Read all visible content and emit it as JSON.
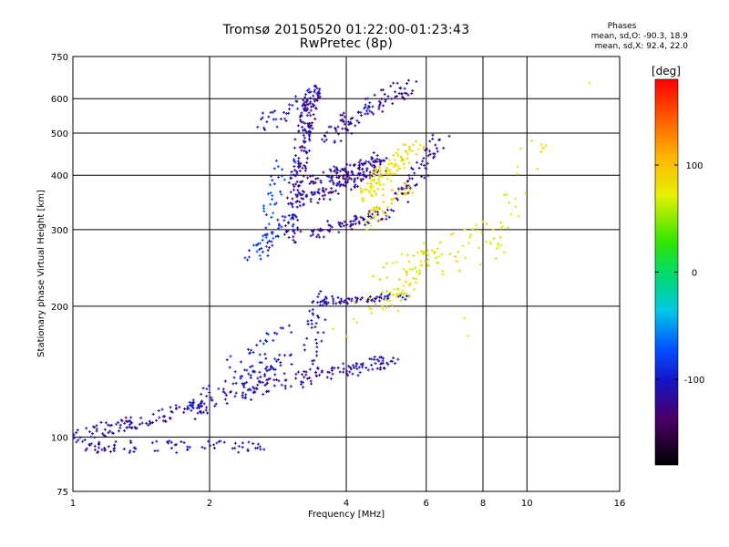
{
  "header": {
    "title": "Tromsø 20150520 01:22:00-01:23:43",
    "subtitle": "RwPretec (8p)"
  },
  "phase_stats": {
    "title": "Phases",
    "line_o": "mean, sd,O: -90.3, 18.9",
    "line_x": "mean, sd,X:  92.4, 22.0"
  },
  "colorbar": {
    "label": "[deg]",
    "range": [
      -180,
      180
    ],
    "ticks": [
      {
        "value": 100,
        "label": "100"
      },
      {
        "value": 0,
        "label": "0"
      },
      {
        "value": -100,
        "label": "-100"
      }
    ]
  },
  "chart_data": {
    "type": "scatter",
    "title": "Tromsø 20150520 01:22:00-01:23:43",
    "subtitle": "RwPretec (8p)",
    "xlabel": "Frequency [MHz]",
    "ylabel": "Stationary phase Virtual Height [km]",
    "xscale": "log",
    "yscale": "log",
    "xlim": [
      1,
      16
    ],
    "ylim": [
      75,
      750
    ],
    "xticks": [
      1,
      2,
      4,
      6,
      8,
      10,
      16
    ],
    "xtick_labels": [
      "1",
      "2",
      "4",
      "6",
      "8",
      "10",
      "16"
    ],
    "yticks": [
      75,
      100,
      200,
      300,
      400,
      500,
      600,
      750
    ],
    "ytick_labels": [
      "75",
      "100",
      "200",
      "300",
      "400",
      "500",
      "600",
      "750"
    ],
    "grid": true,
    "color_quantity": "phase [deg]",
    "traces": [
      {
        "x_range": [
          1.0,
          2.6
        ],
        "y_start": 95,
        "y_end": 95,
        "x_jitter": 0.04,
        "y_jitter": 3,
        "n": 80,
        "phase": -110
      },
      {
        "x_range": [
          1.0,
          2.0
        ],
        "y_start": 100,
        "y_end": 118,
        "x_jitter": 0.05,
        "y_jitter": 4,
        "n": 110,
        "phase": -112
      },
      {
        "x_range": [
          1.8,
          3.0
        ],
        "y_start": 115,
        "y_end": 150,
        "x_jitter": 0.05,
        "y_jitter": 7,
        "n": 90,
        "phase": -108
      },
      {
        "x_range": [
          2.3,
          5.0
        ],
        "y_start": 125,
        "y_end": 150,
        "x_jitter": 0.05,
        "y_jitter": 5,
        "n": 130,
        "phase": -115
      },
      {
        "x_range": [
          2.2,
          2.9
        ],
        "y_start": 140,
        "y_end": 175,
        "x_jitter": 0.06,
        "y_jitter": 8,
        "n": 30,
        "phase": -100
      },
      {
        "x_range": [
          3.3,
          3.6
        ],
        "y_start": 140,
        "y_end": 220,
        "x_jitter": 0.05,
        "y_jitter": 6,
        "n": 40,
        "phase": -112
      },
      {
        "x_range": [
          3.5,
          5.5
        ],
        "y_start": 205,
        "y_end": 210,
        "x_jitter": 0.05,
        "y_jitter": 4,
        "n": 70,
        "phase": -112
      },
      {
        "x_range": [
          5.0,
          6.2
        ],
        "y_start": 200,
        "y_end": 265,
        "x_jitter": 0.05,
        "y_jitter": 8,
        "n": 50,
        "phase": 75
      },
      {
        "x_range": [
          2.5,
          3.0
        ],
        "y_start": 260,
        "y_end": 320,
        "x_jitter": 0.05,
        "y_jitter": 10,
        "n": 50,
        "phase": -85
      },
      {
        "x_range": [
          2.7,
          3.0
        ],
        "y_start": 320,
        "y_end": 440,
        "x_jitter": 0.05,
        "y_jitter": 12,
        "n": 30,
        "phase": -80
      },
      {
        "x_range": [
          2.6,
          3.3
        ],
        "y_start": 520,
        "y_end": 600,
        "x_jitter": 0.05,
        "y_jitter": 20,
        "n": 30,
        "phase": -105
      },
      {
        "x_range": [
          3.0,
          3.4
        ],
        "y_start": 280,
        "y_end": 640,
        "x_jitter": 0.04,
        "y_jitter": 10,
        "n": 200,
        "phase": -118
      },
      {
        "x_range": [
          3.2,
          5.0
        ],
        "y_start": 290,
        "y_end": 330,
        "x_jitter": 0.05,
        "y_jitter": 8,
        "n": 80,
        "phase": -118
      },
      {
        "x_range": [
          3.3,
          4.8
        ],
        "y_start": 350,
        "y_end": 420,
        "x_jitter": 0.05,
        "y_jitter": 12,
        "n": 110,
        "phase": -118
      },
      {
        "x_range": [
          3.4,
          4.8
        ],
        "y_start": 390,
        "y_end": 440,
        "x_jitter": 0.05,
        "y_jitter": 12,
        "n": 80,
        "phase": -120
      },
      {
        "x_range": [
          3.6,
          5.5
        ],
        "y_start": 490,
        "y_end": 640,
        "x_jitter": 0.05,
        "y_jitter": 25,
        "n": 100,
        "phase": -115
      },
      {
        "x_range": [
          4.3,
          5.8
        ],
        "y_start": 360,
        "y_end": 470,
        "x_jitter": 0.05,
        "y_jitter": 15,
        "n": 110,
        "phase": 80
      },
      {
        "x_range": [
          5.3,
          6.5
        ],
        "y_start": 350,
        "y_end": 490,
        "x_jitter": 0.05,
        "y_jitter": 12,
        "n": 60,
        "phase": -115
      },
      {
        "x_range": [
          4.3,
          5.6
        ],
        "y_start": 300,
        "y_end": 380,
        "x_jitter": 0.05,
        "y_jitter": 12,
        "n": 40,
        "phase": 85
      },
      {
        "x_range": [
          4.0,
          9.0
        ],
        "y_start": 200,
        "y_end": 300,
        "x_jitter": 0.08,
        "y_jitter": 30,
        "n": 80,
        "phase": 80
      },
      {
        "x_range": [
          7.0,
          13.0
        ],
        "y_start": 140,
        "y_end": 600,
        "x_jitter": 0.06,
        "y_jitter": 60,
        "n": 25,
        "phase": 70
      }
    ]
  }
}
